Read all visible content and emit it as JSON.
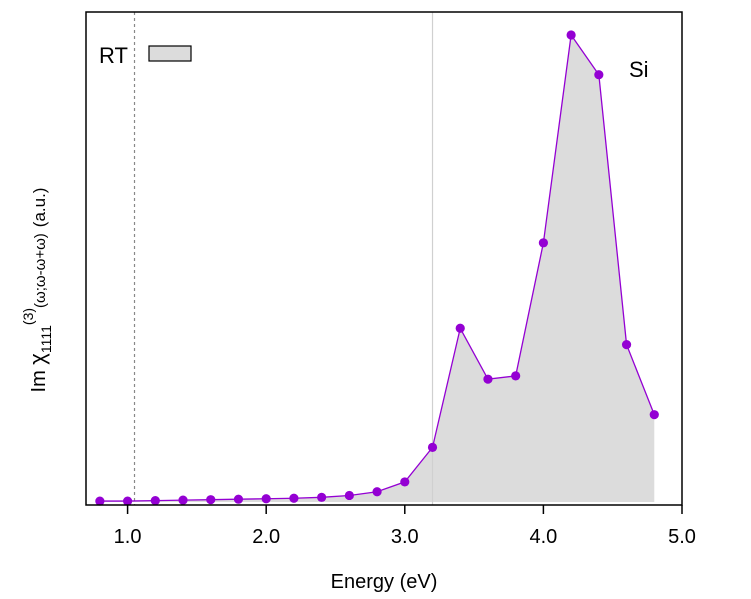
{
  "chart_data": {
    "type": "area",
    "title": "",
    "xlabel": "Energy (eV)",
    "ylabel": {
      "prefix": "Im ",
      "symbol": "χ",
      "subscript": "1111",
      "superscript": "(3)",
      "args": "(ω;ω-ω+ω)",
      "units": "(a.u.)"
    },
    "xlim": [
      0.7,
      5.0
    ],
    "ylim": [
      0,
      1.0
    ],
    "x_ticks": [
      1.0,
      2.0,
      3.0,
      4.0,
      5.0
    ],
    "x_tick_labels": [
      "1.0",
      "2.0",
      "3.0",
      "4.0",
      "5.0"
    ],
    "y_ticks_shown": false,
    "grid": false,
    "legend": {
      "label": "RT",
      "placement": "top-left",
      "swatch": "#dcdcdc"
    },
    "annotation": "Si",
    "vlines": [
      {
        "x": 1.05,
        "style": "dashed",
        "color": "#888888"
      },
      {
        "x": 3.2,
        "style": "solid",
        "color": "#d0d0d0"
      }
    ],
    "series": [
      {
        "x": [
          0.8,
          1.0,
          1.2,
          1.4,
          1.6,
          1.8,
          2.0,
          2.2,
          2.4,
          2.6,
          2.8,
          3.0,
          3.2,
          3.4,
          3.6,
          3.8,
          4.0,
          4.2,
          4.4,
          4.6,
          4.8
        ],
        "values": [
          0.002,
          0.002,
          0.003,
          0.004,
          0.005,
          0.006,
          0.007,
          0.008,
          0.01,
          0.014,
          0.022,
          0.043,
          0.117,
          0.372,
          0.263,
          0.27,
          0.555,
          1.0,
          0.915,
          0.337,
          0.187
        ],
        "color": "#9400d3",
        "fill": "#dcdcdc"
      }
    ]
  }
}
